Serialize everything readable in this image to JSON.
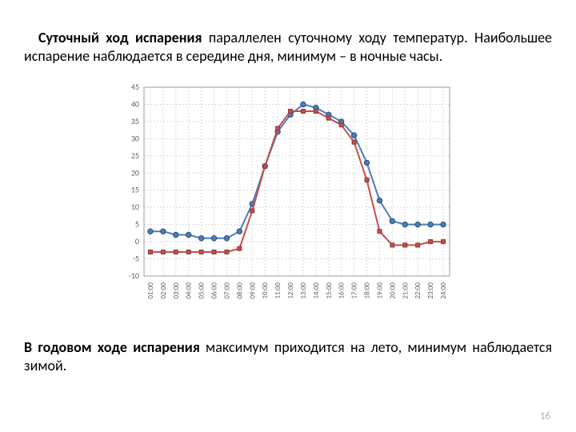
{
  "paragraph_top": {
    "lead_bold": "Суточный ход испарения",
    "rest": " параллелен суточному ходу температур. Наибольшее испарение наблюдается в середине дня, минимум – в ночные часы."
  },
  "paragraph_bottom": {
    "lead_bold": "В годовом ходе испарения",
    "rest": " максимум приходится на лето, минимум наблюдается зимой."
  },
  "page_number": "16",
  "chart": {
    "type": "line",
    "background_color": "#ffffff",
    "plot_border_color": "#9c9c9c",
    "grid_color": "#d9d9d9",
    "y": {
      "min": -10,
      "max": 45,
      "ticks": [
        -10,
        -5,
        0,
        5,
        10,
        15,
        20,
        25,
        30,
        35,
        40,
        45
      ]
    },
    "x_labels": [
      "01:00",
      "02:00",
      "03:00",
      "04:00",
      "05:00",
      "06:00",
      "07:00",
      "08:00",
      "09:00",
      "10:00",
      "11:00",
      "12:00",
      "13:00",
      "14:00",
      "15:00",
      "16:00",
      "17:00",
      "18:00",
      "19:00",
      "20:00",
      "21:00",
      "22:00",
      "23:00",
      "24:00"
    ],
    "series": [
      {
        "name": "series-blue",
        "line_color": "#4a7ebb",
        "marker_fill": "#4a7ebb",
        "marker_stroke": "#2c4d75",
        "marker_shape": "circle",
        "marker_size": 3.2,
        "line_width": 2,
        "values": [
          3,
          3,
          2,
          2,
          1,
          1,
          1,
          3,
          11,
          22,
          32,
          37,
          40,
          39,
          37,
          35,
          31,
          23,
          12,
          6,
          5,
          5,
          5,
          5
        ]
      },
      {
        "name": "series-red",
        "line_color": "#c0504d",
        "marker_fill": "#c0504d",
        "marker_stroke": "#8c3836",
        "marker_shape": "square",
        "marker_size": 5,
        "line_width": 2,
        "values": [
          -3,
          -3,
          -3,
          -3,
          -3,
          -3,
          -3,
          -2,
          9,
          22,
          33,
          38,
          38,
          38,
          36,
          34,
          29,
          18,
          3,
          -1,
          -1,
          -1,
          0,
          0
        ]
      }
    ]
  }
}
